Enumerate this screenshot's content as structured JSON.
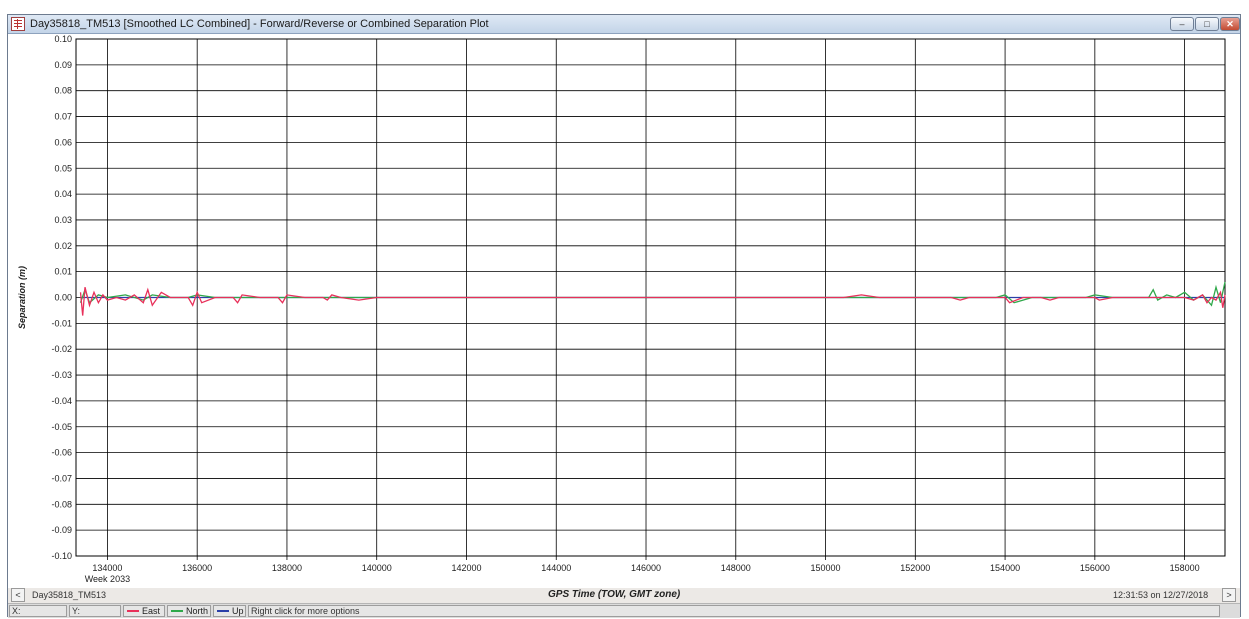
{
  "window": {
    "title": "Day35818_TM513 [Smoothed LC Combined] - Forward/Reverse or Combined Separation Plot",
    "minimize_icon": "minimize-icon",
    "maximize_icon": "maximize-icon",
    "close_icon": "close-icon",
    "minimize_glyph": "–",
    "maximize_glyph": "□",
    "close_glyph": "✕"
  },
  "footer": {
    "left_label": "Day35818_TM513",
    "center_label": "GPS Time (TOW, GMT zone)",
    "right_label": "12:31:53 on 12/27/2018",
    "prev_glyph": "<",
    "next_glyph": ">"
  },
  "statusbar": {
    "x_label": "X:",
    "y_label": "Y:",
    "hint": "Right click for more options"
  },
  "chart_data": {
    "type": "line",
    "title": "",
    "xlabel": "GPS Time (TOW, GMT zone)",
    "ylabel": "Separation (m)",
    "xlim": [
      133300,
      158900
    ],
    "ylim": [
      -0.1,
      0.1
    ],
    "x_ticks": [
      134000,
      136000,
      138000,
      140000,
      142000,
      144000,
      146000,
      148000,
      150000,
      152000,
      154000,
      156000,
      158000
    ],
    "y_ticks": [
      0.1,
      0.09,
      0.08,
      0.07,
      0.06,
      0.05,
      0.04,
      0.03,
      0.02,
      0.01,
      -0.0,
      -0.01,
      -0.02,
      -0.03,
      -0.04,
      -0.05,
      -0.06,
      -0.07,
      -0.08,
      -0.09,
      -0.1
    ],
    "x_sublabel": "Week 2033",
    "grid": true,
    "legend_position": "bottom-status-bar",
    "series": [
      {
        "name": "East",
        "color": "#e8305a",
        "x": [
          133400,
          133450,
          133500,
          133600,
          133700,
          133800,
          133900,
          134000,
          134200,
          134400,
          134600,
          134800,
          134900,
          135000,
          135200,
          135400,
          135800,
          135900,
          136000,
          136100,
          136400,
          136800,
          136900,
          137000,
          137400,
          137800,
          137900,
          138000,
          138400,
          138800,
          138900,
          139000,
          139200,
          139600,
          140000,
          140400,
          140800,
          141200,
          141600,
          142000,
          142400,
          142800,
          143200,
          143600,
          143800,
          144000,
          144400,
          144800,
          145200,
          145600,
          146000,
          146400,
          146800,
          147200,
          147600,
          148000,
          148400,
          148800,
          149200,
          149600,
          150000,
          150400,
          150800,
          151200,
          151600,
          152000,
          152400,
          152800,
          153000,
          153200,
          153600,
          154000,
          154100,
          154400,
          154800,
          155000,
          155200,
          155600,
          156000,
          156100,
          156400,
          156800,
          157200,
          157400,
          157600,
          158000,
          158200,
          158400,
          158500,
          158600,
          158700,
          158800,
          158850,
          158900
        ],
        "y": [
          0.002,
          -0.007,
          0.004,
          -0.003,
          0.002,
          -0.002,
          0.001,
          -0.001,
          0.0,
          -0.001,
          0.001,
          -0.002,
          0.003,
          -0.003,
          0.002,
          0.0,
          0.0,
          -0.003,
          0.002,
          -0.002,
          0.0,
          0.0,
          -0.002,
          0.001,
          0.0,
          0.0,
          -0.002,
          0.001,
          0.0,
          0.0,
          -0.001,
          0.001,
          0.0,
          -0.001,
          0.0,
          0.0,
          0.0,
          0.0,
          0.0,
          0.0,
          0.0,
          0.0,
          0.0,
          0.0,
          0.0,
          0.0,
          0.0,
          0.0,
          0.0,
          0.0,
          0.0,
          0.0,
          0.0,
          0.0,
          0.0,
          0.0,
          0.0,
          0.0,
          0.0,
          0.0,
          0.0,
          0.0,
          0.001,
          0.0,
          0.0,
          0.0,
          0.0,
          0.0,
          -0.001,
          0.0,
          0.0,
          0.0,
          -0.002,
          0.0,
          0.0,
          -0.001,
          0.0,
          0.0,
          0.0,
          -0.001,
          0.0,
          0.0,
          0.0,
          0.0,
          0.0,
          0.0,
          -0.001,
          0.001,
          -0.002,
          0.0,
          -0.001,
          0.002,
          -0.004,
          0.001
        ]
      },
      {
        "name": "North",
        "color": "#2fa84a",
        "x": [
          133400,
          133500,
          133600,
          133800,
          134000,
          134400,
          134800,
          135000,
          135400,
          135800,
          136000,
          136400,
          136800,
          137000,
          137400,
          137800,
          138000,
          138400,
          138800,
          139000,
          139400,
          139800,
          140200,
          140600,
          141000,
          141400,
          141800,
          142200,
          142600,
          143000,
          143400,
          143800,
          144200,
          144600,
          145000,
          145400,
          145800,
          146200,
          146600,
          147000,
          147400,
          147800,
          148200,
          148600,
          149000,
          149400,
          149800,
          150200,
          150600,
          151000,
          151400,
          151800,
          152200,
          152600,
          153000,
          153400,
          153800,
          154000,
          154200,
          154600,
          155000,
          155400,
          155800,
          156000,
          156400,
          156800,
          157200,
          157300,
          157400,
          157600,
          157800,
          158000,
          158200,
          158400,
          158600,
          158700,
          158800,
          158900
        ],
        "y": [
          -0.002,
          0.003,
          -0.002,
          0.001,
          0.0,
          0.001,
          -0.001,
          0.001,
          0.0,
          0.0,
          0.001,
          0.0,
          0.0,
          0.0,
          0.0,
          0.0,
          0.0,
          0.0,
          0.0,
          0.0,
          0.0,
          0.0,
          0.0,
          0.0,
          0.0,
          0.0,
          0.0,
          0.0,
          0.0,
          0.0,
          0.0,
          0.0,
          0.0,
          0.0,
          0.0,
          0.0,
          0.0,
          0.0,
          0.0,
          0.0,
          0.0,
          0.0,
          0.0,
          0.0,
          0.0,
          0.0,
          0.0,
          0.0,
          0.0,
          0.0,
          0.0,
          0.0,
          0.0,
          0.0,
          0.0,
          0.0,
          0.0,
          0.001,
          -0.002,
          0.0,
          0.0,
          0.0,
          0.0,
          0.001,
          0.0,
          0.0,
          0.0,
          0.003,
          -0.001,
          0.001,
          0.0,
          0.002,
          -0.001,
          0.001,
          -0.003,
          0.004,
          -0.002,
          0.006
        ]
      },
      {
        "name": "Up",
        "color": "#2b3fa8",
        "x": [
          133400,
          134000,
          135000,
          136000,
          137000,
          138000,
          139000,
          140000,
          141000,
          142000,
          143000,
          144000,
          145000,
          146000,
          147000,
          148000,
          149000,
          150000,
          151000,
          152000,
          153000,
          154000,
          155000,
          156000,
          157000,
          158000,
          158900
        ],
        "y": [
          0.0,
          0.0,
          0.0,
          0.0,
          0.0,
          0.0,
          0.0,
          0.0,
          0.0,
          0.0,
          0.0,
          0.0,
          0.0,
          0.0,
          0.0,
          0.0,
          0.0,
          0.0,
          0.0,
          0.0,
          0.0,
          0.0,
          0.0,
          0.0,
          0.0,
          0.0,
          0.0
        ]
      }
    ]
  }
}
